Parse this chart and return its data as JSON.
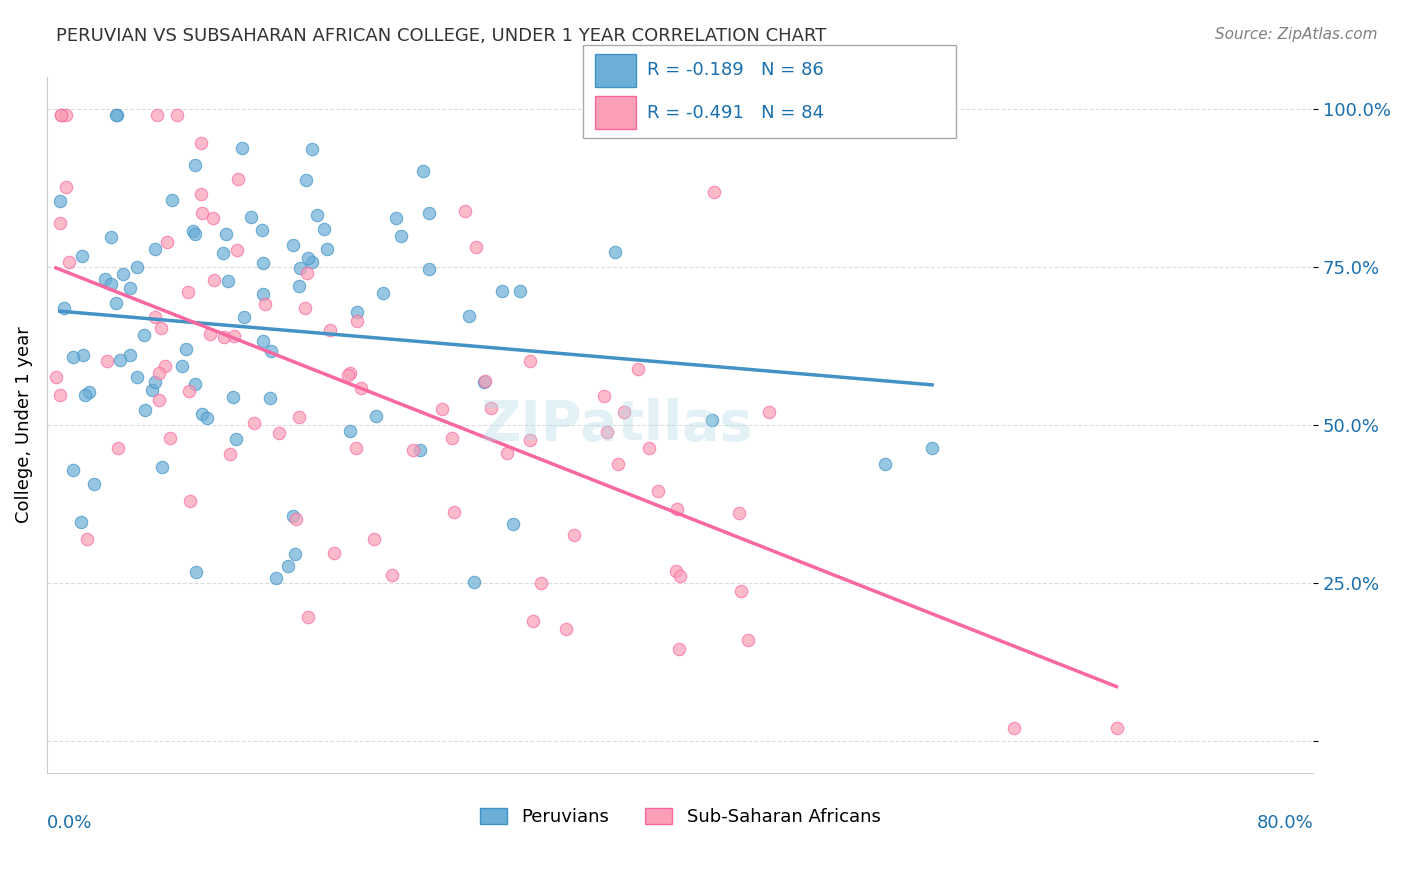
{
  "title": "PERUVIAN VS SUBSAHARAN AFRICAN COLLEGE, UNDER 1 YEAR CORRELATION CHART",
  "source": "Source: ZipAtlas.com",
  "ylabel": "College, Under 1 year",
  "blue_color": "#6baed6",
  "pink_color": "#fa9fb5",
  "blue_edge": "#4292c6",
  "pink_edge": "#f768a1",
  "blue_line": "#4292c6",
  "pink_line": "#f768a1",
  "axis_label_color": "#1a6faf",
  "title_color": "#333333",
  "grid_color": "#dddddd",
  "background_color": "#ffffff",
  "R_blue": -0.189,
  "N_blue": 86,
  "R_pink": -0.491,
  "N_pink": 84,
  "seed_blue": 42,
  "seed_pink": 7,
  "x_min": 0.0,
  "x_max": 0.8,
  "y_min": -0.05,
  "y_max": 1.05
}
